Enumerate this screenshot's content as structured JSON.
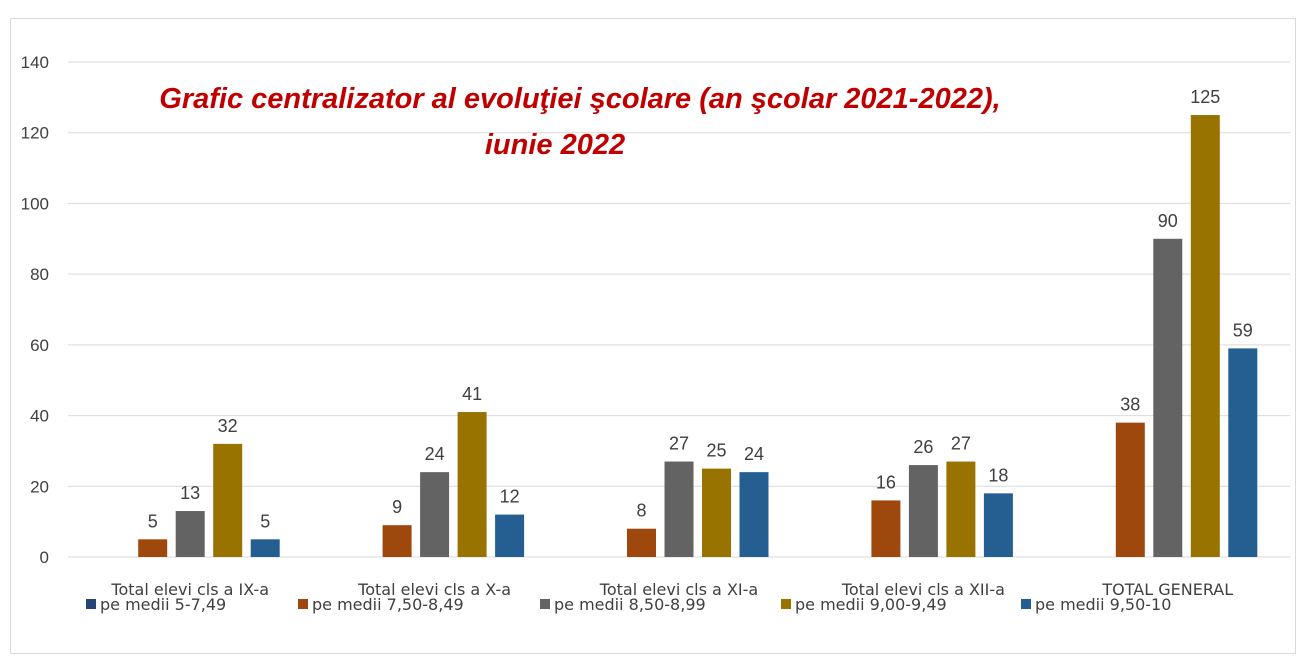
{
  "chart_data": {
    "type": "bar",
    "title_lines": [
      "Grafic centralizator  al evoluţiei şcolare (an şcolar 2021-2022),",
      "iunie 2022"
    ],
    "categories": [
      "Total elevi cls a IX-a",
      "Total elevi cls a X-a",
      "Total elevi cls a XI-a",
      "Total elevi cls a XII-a",
      "TOTAL GENERAL"
    ],
    "series": [
      {
        "name": "pe medii 5-7,49",
        "color": "#264478",
        "values": [
          0,
          0,
          0,
          0,
          0
        ]
      },
      {
        "name": "pe medii 7,50-8,49",
        "color": "#9e480e",
        "values": [
          5,
          9,
          8,
          16,
          38
        ]
      },
      {
        "name": "pe medii 8,50-8,99",
        "color": "#636363",
        "values": [
          13,
          24,
          27,
          26,
          90
        ]
      },
      {
        "name": "pe medii 9,00-9,49",
        "color": "#997300",
        "values": [
          32,
          41,
          25,
          27,
          125
        ]
      },
      {
        "name": "pe medii 9,50-10",
        "color": "#255e91",
        "values": [
          5,
          12,
          24,
          18,
          59
        ]
      }
    ],
    "y_ticks": [
      "0",
      "20",
      "40",
      "60",
      "80",
      "100",
      "120",
      "140"
    ],
    "ylim": [
      0,
      140
    ],
    "grid": true,
    "legend_position": "bottom",
    "data_labels": true,
    "title_color": "#c00000",
    "grid_color": "#d9d9d9"
  }
}
